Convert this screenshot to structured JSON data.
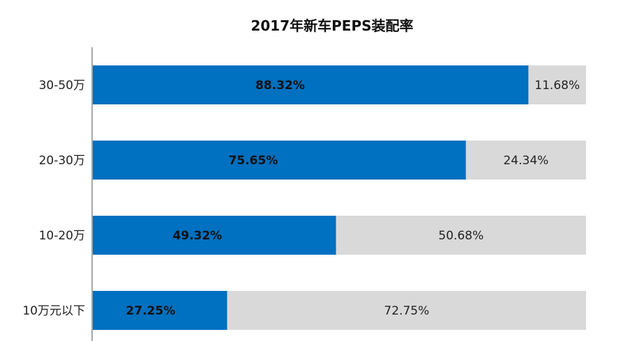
{
  "chart_data": {
    "type": "bar",
    "orientation": "horizontal",
    "stacked": true,
    "title": "2017年新车PEPS装配率",
    "categories": [
      "30-50万",
      "20-30万",
      "10-20万",
      "10万元以下"
    ],
    "series": [
      {
        "values": [
          88.32,
          75.65,
          49.32,
          27.25
        ],
        "labels": [
          "88.32%",
          "75.65%",
          "49.32%",
          "27.25%"
        ],
        "color": "#0070C0"
      },
      {
        "values": [
          11.68,
          24.34,
          50.68,
          72.75
        ],
        "labels": [
          "11.68%",
          "24.34%",
          "50.68%",
          "72.75%"
        ],
        "color": "#D9D9D9"
      }
    ],
    "xlim": [
      0,
      100
    ],
    "grid": false,
    "legend": "none"
  }
}
